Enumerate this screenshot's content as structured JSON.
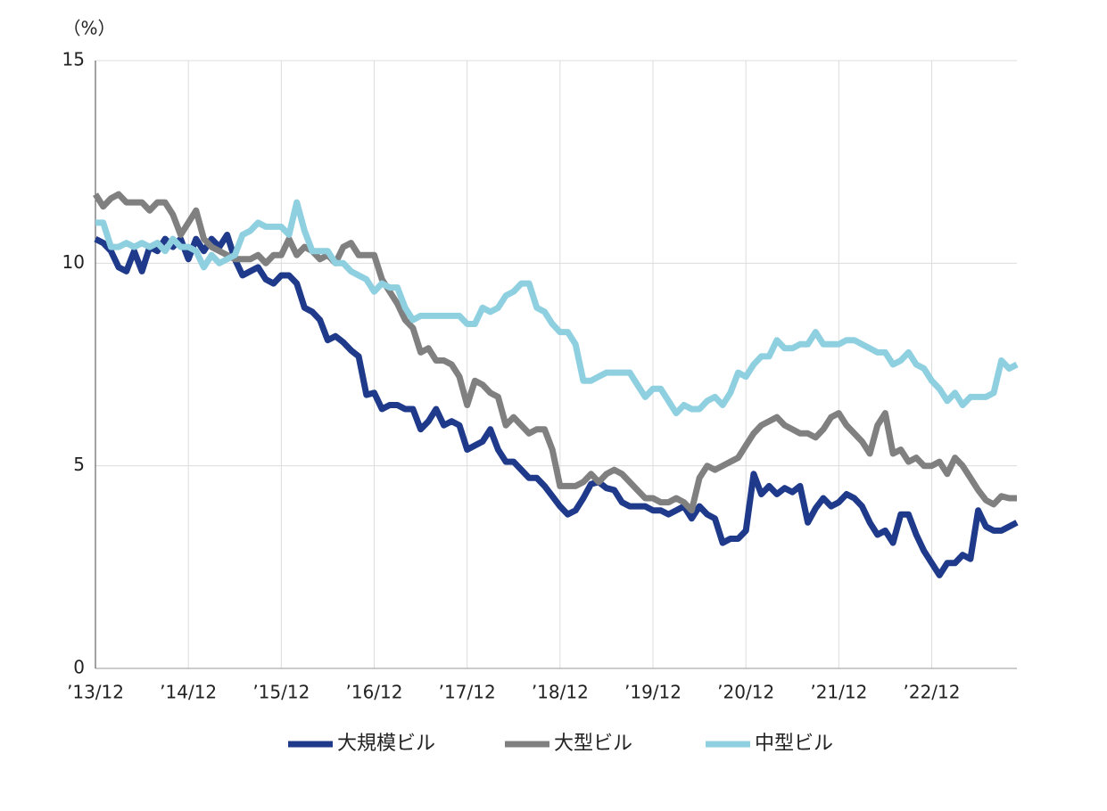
{
  "chart_data": {
    "type": "line",
    "y_label": "（%）",
    "categories": [
      "’13/12",
      null,
      null,
      null,
      null,
      null,
      null,
      null,
      null,
      null,
      null,
      null,
      "’14/12",
      null,
      null,
      null,
      null,
      null,
      null,
      null,
      null,
      null,
      null,
      null,
      "’15/12",
      null,
      null,
      null,
      null,
      null,
      null,
      null,
      null,
      null,
      null,
      null,
      "’16/12",
      null,
      null,
      null,
      null,
      null,
      null,
      null,
      null,
      null,
      null,
      null,
      "’17/12",
      null,
      null,
      null,
      null,
      null,
      null,
      null,
      null,
      null,
      null,
      null,
      "’18/12",
      null,
      null,
      null,
      null,
      null,
      null,
      null,
      null,
      null,
      null,
      null,
      "’19/12",
      null,
      null,
      null,
      null,
      null,
      null,
      null,
      null,
      null,
      null,
      null,
      "’20/12",
      null,
      null,
      null,
      null,
      null,
      null,
      null,
      null,
      null,
      null,
      null,
      "’21/12",
      null,
      null,
      null,
      null,
      null,
      null,
      null,
      null,
      null,
      null,
      null,
      "’22/12",
      null,
      null,
      null,
      null,
      null,
      null,
      null,
      null,
      null,
      null,
      null
    ],
    "series": [
      {
        "name": "大規模ビル",
        "color": "#1f3a8a",
        "values": [
          10.6,
          10.5,
          10.3,
          9.9,
          9.8,
          10.3,
          9.8,
          10.4,
          10.3,
          10.6,
          10.4,
          10.6,
          10.1,
          10.6,
          10.3,
          10.6,
          10.4,
          10.7,
          10.1,
          9.7,
          9.8,
          9.9,
          9.6,
          9.5,
          9.7,
          9.7,
          9.5,
          8.9,
          8.8,
          8.6,
          8.1,
          8.2,
          8.05,
          7.85,
          7.7,
          6.75,
          6.8,
          6.4,
          6.5,
          6.5,
          6.4,
          6.4,
          5.9,
          6.1,
          6.4,
          6.0,
          6.1,
          6.0,
          5.4,
          5.5,
          5.6,
          5.9,
          5.4,
          5.1,
          5.1,
          4.9,
          4.7,
          4.7,
          4.5,
          4.25,
          4.0,
          3.8,
          3.9,
          4.2,
          4.55,
          4.6,
          4.45,
          4.4,
          4.1,
          4.0,
          4.0,
          4.0,
          3.9,
          3.9,
          3.8,
          3.9,
          4.0,
          3.7,
          4.0,
          3.8,
          3.7,
          3.1,
          3.2,
          3.2,
          3.4,
          4.8,
          4.3,
          4.5,
          4.3,
          4.45,
          4.35,
          4.5,
          3.6,
          3.95,
          4.2,
          4.0,
          4.1,
          4.3,
          4.2,
          4.0,
          3.6,
          3.3,
          3.4,
          3.1,
          3.8,
          3.8,
          3.3,
          2.9,
          2.6,
          2.3,
          2.6,
          2.6,
          2.8,
          2.7,
          3.9,
          3.5,
          3.4,
          3.4,
          3.5,
          3.6
        ]
      },
      {
        "name": "大型ビル",
        "color": "#808080",
        "values": [
          11.7,
          11.4,
          11.6,
          11.7,
          11.5,
          11.5,
          11.5,
          11.3,
          11.5,
          11.5,
          11.2,
          10.7,
          11.0,
          11.3,
          10.6,
          10.4,
          10.3,
          10.2,
          10.1,
          10.1,
          10.1,
          10.2,
          10.0,
          10.2,
          10.2,
          10.6,
          10.2,
          10.4,
          10.3,
          10.1,
          10.2,
          10.0,
          10.4,
          10.5,
          10.2,
          10.2,
          10.2,
          9.6,
          9.3,
          9.0,
          8.6,
          8.4,
          7.8,
          7.9,
          7.6,
          7.6,
          7.5,
          7.2,
          6.5,
          7.1,
          7.0,
          6.8,
          6.7,
          6.0,
          6.2,
          6.0,
          5.8,
          5.9,
          5.9,
          5.4,
          4.5,
          4.5,
          4.5,
          4.6,
          4.8,
          4.6,
          4.8,
          4.9,
          4.8,
          4.6,
          4.4,
          4.2,
          4.2,
          4.1,
          4.1,
          4.2,
          4.1,
          3.9,
          4.7,
          5.0,
          4.9,
          5.0,
          5.1,
          5.2,
          5.5,
          5.8,
          6.0,
          6.1,
          6.2,
          6.0,
          5.9,
          5.8,
          5.8,
          5.7,
          5.9,
          6.2,
          6.3,
          6.0,
          5.8,
          5.6,
          5.3,
          6.0,
          6.3,
          5.3,
          5.4,
          5.1,
          5.2,
          5.0,
          5.0,
          5.1,
          4.8,
          5.2,
          5.0,
          4.7,
          4.4,
          4.15,
          4.05,
          4.25,
          4.2,
          4.2
        ]
      },
      {
        "name": "中型ビル",
        "color": "#8ecfe0",
        "values": [
          11.0,
          11.0,
          10.4,
          10.4,
          10.5,
          10.4,
          10.5,
          10.4,
          10.5,
          10.3,
          10.6,
          10.4,
          10.4,
          10.3,
          9.9,
          10.2,
          10.0,
          10.1,
          10.2,
          10.7,
          10.8,
          11.0,
          10.9,
          10.9,
          10.9,
          10.7,
          11.5,
          10.8,
          10.3,
          10.3,
          10.3,
          10.0,
          10.0,
          9.8,
          9.7,
          9.6,
          9.3,
          9.5,
          9.4,
          9.4,
          8.9,
          8.6,
          8.7,
          8.7,
          8.7,
          8.7,
          8.7,
          8.7,
          8.5,
          8.5,
          8.9,
          8.8,
          8.9,
          9.2,
          9.3,
          9.5,
          9.5,
          8.9,
          8.8,
          8.5,
          8.3,
          8.3,
          8.0,
          7.1,
          7.1,
          7.2,
          7.3,
          7.3,
          7.3,
          7.3,
          7.0,
          6.7,
          6.9,
          6.9,
          6.6,
          6.3,
          6.5,
          6.4,
          6.4,
          6.6,
          6.7,
          6.5,
          6.8,
          7.3,
          7.2,
          7.5,
          7.7,
          7.7,
          8.1,
          7.9,
          7.9,
          8.0,
          8.0,
          8.3,
          8.0,
          8.0,
          8.0,
          8.1,
          8.1,
          8.0,
          7.9,
          7.8,
          7.8,
          7.5,
          7.6,
          7.8,
          7.5,
          7.4,
          7.1,
          6.9,
          6.6,
          6.8,
          6.5,
          6.7,
          6.7,
          6.7,
          6.8,
          7.6,
          7.4,
          7.5
        ]
      }
    ],
    "ylim": [
      0,
      15
    ],
    "yticks": [
      0,
      5,
      10,
      15
    ],
    "grid": true,
    "legend": "bottom"
  }
}
